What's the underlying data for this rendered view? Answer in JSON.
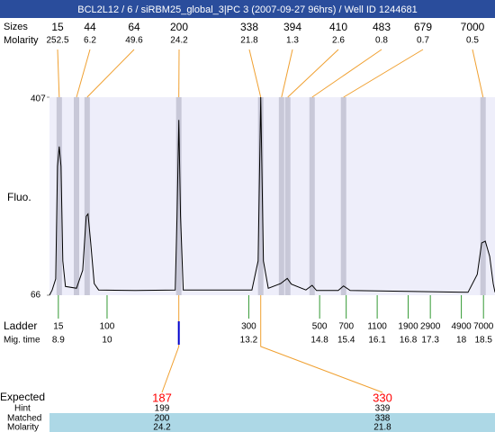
{
  "header": {
    "title": "BCL2L12 / 6 / siRBM25_global_3|PC 3 (2007-09-27 96hrs) / Well ID 1244681"
  },
  "chart_data": {
    "type": "line",
    "y_label": "Fluo.",
    "color": "#000000",
    "xlim": [
      8.7,
      18.76
    ],
    "ylim": [
      66,
      407
    ],
    "yticks": [
      66,
      407
    ],
    "x": [
      8.7,
      8.76,
      8.84,
      8.88,
      8.92,
      8.96,
      9.0,
      9.06,
      9.31,
      9.45,
      9.53,
      9.57,
      9.63,
      9.71,
      9.81,
      10.63,
      11.54,
      11.58,
      11.62,
      11.66,
      11.72,
      13.27,
      13.41,
      13.47,
      13.53,
      13.64,
      13.92,
      14.07,
      14.16,
      14.49,
      14.63,
      14.73,
      15.22,
      15.34,
      15.49,
      18.15,
      18.36,
      18.46,
      18.54,
      18.64,
      18.72,
      18.76
    ],
    "values": [
      66,
      75,
      94,
      288,
      322,
      288,
      125,
      81,
      78,
      109,
      202,
      206,
      156,
      86,
      75,
      74,
      75,
      202,
      368,
      202,
      75,
      75,
      125,
      407,
      125,
      78,
      86,
      95,
      85,
      75,
      83,
      74,
      74,
      82,
      74,
      71,
      102,
      156,
      159,
      133,
      86,
      71
    ],
    "peaks": {
      "size_label": "Sizes",
      "molarity_label": "Molarity",
      "band_color": "#c8c8d8",
      "link_color": "#f0a030",
      "sizes": [
        15,
        44,
        64,
        200,
        338,
        394,
        410,
        483,
        679,
        7000
      ],
      "molarities": [
        252.5,
        6.2,
        49.6,
        24.2,
        21.8,
        1.3,
        2.6,
        0.8,
        0.7,
        0.5
      ],
      "times": [
        8.92,
        9.31,
        9.55,
        11.62,
        13.47,
        13.94,
        14.08,
        14.63,
        15.34,
        18.49
      ]
    },
    "ladder": {
      "label": "Ladder",
      "time_label": "Mig. time",
      "color": "#339933",
      "sizes": [
        15,
        100,
        300,
        500,
        700,
        1100,
        1900,
        2900,
        4900,
        7000
      ],
      "times": [
        8.9,
        10,
        13.2,
        14.8,
        15.4,
        16.1,
        16.8,
        17.3,
        18,
        18.5
      ]
    },
    "expected": {
      "labels": [
        "Expected",
        "Hint",
        "Matched",
        "Molarity"
      ],
      "expected_color": "#ff0000",
      "columns": [
        {
          "expected": 187,
          "hint": 199,
          "matched": 200,
          "molarity": 24.2
        },
        {
          "expected": 330,
          "hint": 339,
          "matched": 338,
          "molarity": 21.8
        }
      ]
    }
  }
}
